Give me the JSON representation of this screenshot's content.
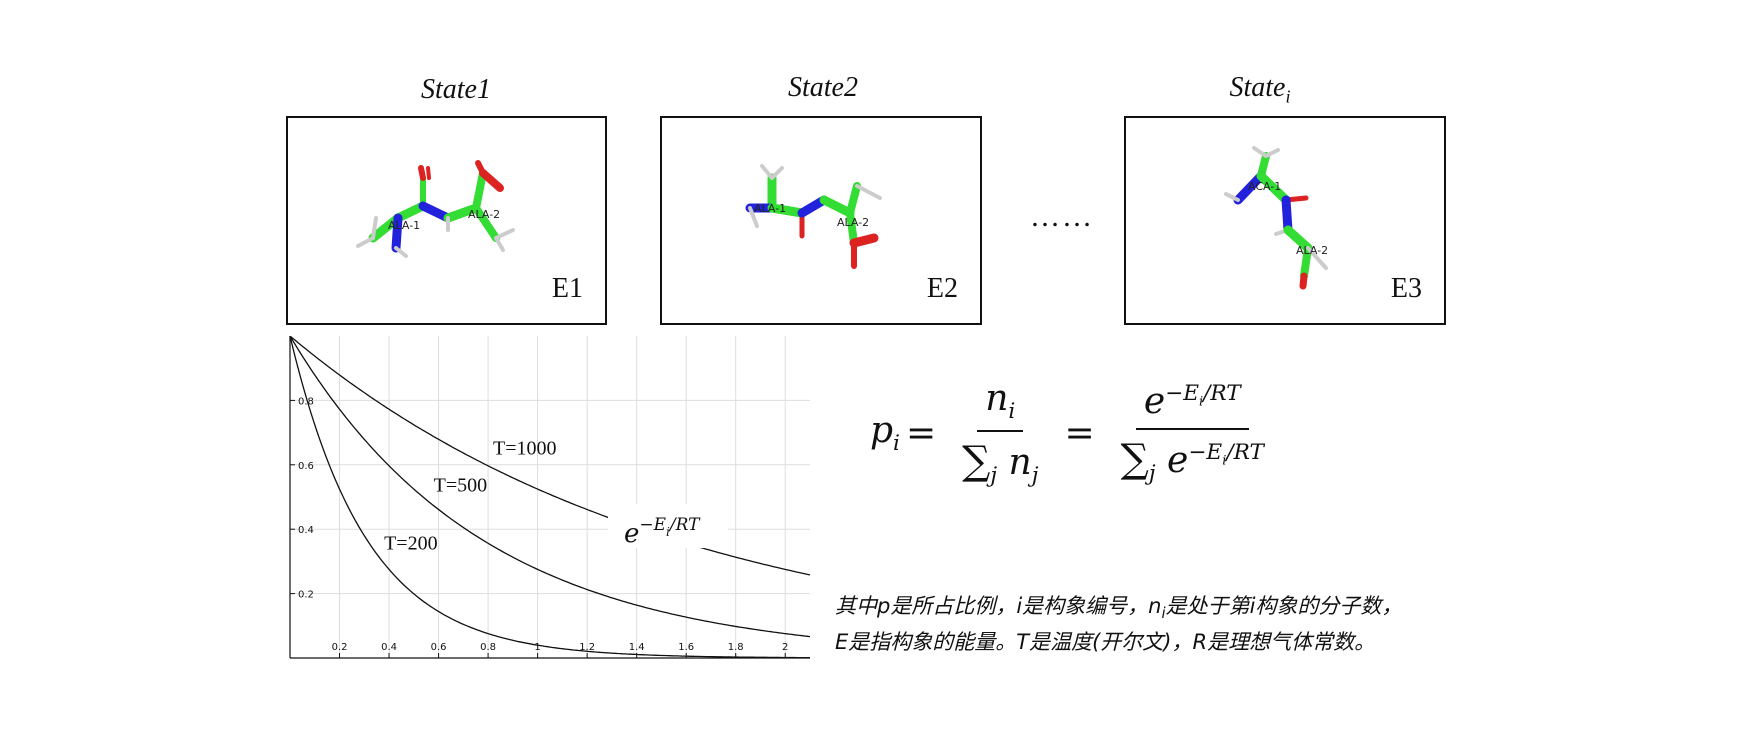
{
  "states": [
    {
      "title_main": "State1",
      "title_sub": "",
      "energy": "E1",
      "residue_labels": [
        "ALA-1",
        "ALA-2"
      ]
    },
    {
      "title_main": "State2",
      "title_sub": "",
      "energy": "E2",
      "residue_labels": [
        "ALA-1",
        "ALA-2"
      ]
    },
    {
      "title_main": "State",
      "title_sub": "i",
      "energy": "E3",
      "residue_labels": [
        "ACA-1",
        "ALA-2"
      ]
    }
  ],
  "ellipsis": "……",
  "colors": {
    "carbon": "#33dd33",
    "nitrogen": "#2222dd",
    "oxygen": "#dd2222",
    "hydrogen": "#cccccc",
    "curve": "#111111",
    "grid": "#dddddd"
  },
  "chart_data": {
    "type": "line",
    "function": "exp(-E/(R*T))",
    "xlim": [
      0,
      2.1
    ],
    "ylim": [
      0,
      1.0
    ],
    "x_ticks": [
      0.2,
      0.4,
      0.6,
      0.8,
      1,
      1.2,
      1.4,
      1.6,
      1.8,
      2
    ],
    "y_ticks": [
      0.2,
      0.4,
      0.6,
      0.8
    ],
    "grid": true,
    "series": [
      {
        "name": "T=200",
        "T": 200
      },
      {
        "name": "T=500",
        "T": 500
      },
      {
        "name": "T=1000",
        "T": 1000
      }
    ],
    "annotation": "e^{-E_i/RT}"
  },
  "formula": {
    "lhs": "p",
    "lhs_sub": "i",
    "eq": "=",
    "frac1_num": "n",
    "frac1_num_sub": "i",
    "frac1_den_sum": "∑",
    "frac1_den_sum_sub": "j",
    "frac1_den": "n",
    "frac1_den_sub": "j",
    "frac2_num": "e",
    "frac2_num_sup": "−E",
    "frac2_num_sup_sub": "i",
    "frac2_num_sup_tail": "/RT",
    "frac2_den_sum": "∑",
    "frac2_den_sum_sub": "j",
    "frac2_den": "e",
    "frac2_den_sup": "−E",
    "frac2_den_sup_sub": "i",
    "frac2_den_sup_tail": "/RT"
  },
  "caption": {
    "line1_a": "其中p是所占比例，i是构象编号，n",
    "line1_sub": "i",
    "line1_b": "是处于第i构象的分子数，",
    "line2": "E是指构象的能量。T是温度(开尔文)，R是理想气体常数。"
  }
}
